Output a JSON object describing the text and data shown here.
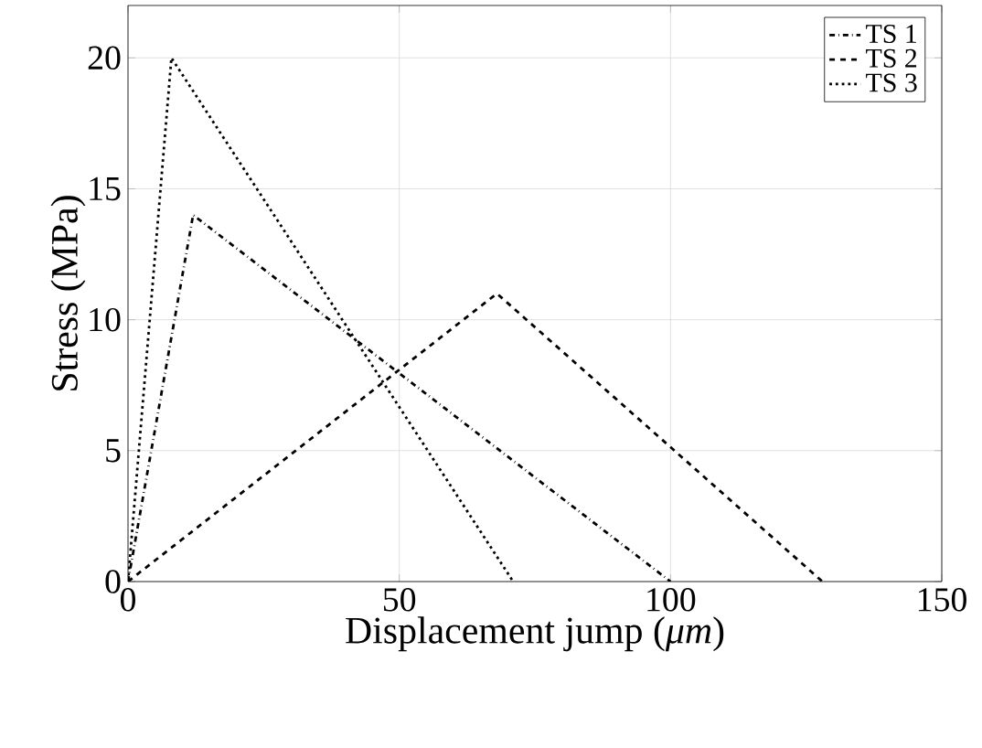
{
  "chart_data": {
    "type": "line",
    "xlabel": "Displacement jump (*μm*)",
    "ylabel": "Stress (MPa)",
    "xlim": [
      0,
      150
    ],
    "ylim": [
      0,
      22
    ],
    "xticks": [
      0,
      50,
      100,
      150
    ],
    "yticks": [
      0,
      5,
      10,
      15,
      20
    ],
    "grid": true,
    "legend": "top right",
    "marker": "none",
    "series": [
      {
        "name": "TS 1",
        "color": "#000000",
        "line_style": "dashdot",
        "x": [
          0,
          12,
          100
        ],
        "values": [
          0,
          14,
          0
        ]
      },
      {
        "name": "TS 2",
        "color": "#000000",
        "line_style": "dashed",
        "x": [
          0,
          68,
          128
        ],
        "values": [
          0,
          11,
          0
        ]
      },
      {
        "name": "TS 3",
        "color": "#000000",
        "line_style": "dotted",
        "x": [
          0,
          8,
          71
        ],
        "values": [
          0,
          20,
          0
        ]
      }
    ]
  }
}
